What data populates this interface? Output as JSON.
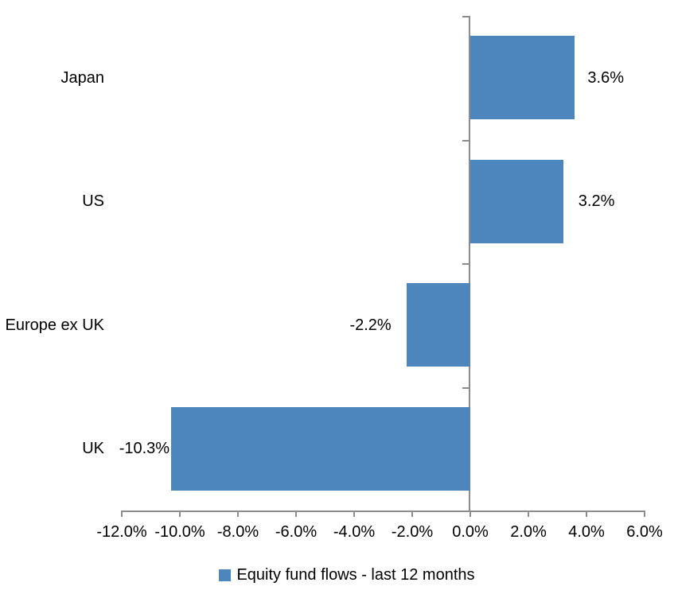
{
  "chart_data": {
    "type": "bar",
    "orientation": "horizontal",
    "title": "",
    "categories": [
      "Japan",
      "US",
      "Europe ex UK",
      "UK"
    ],
    "values": [
      3.6,
      3.2,
      -2.2,
      -10.3
    ],
    "data_labels": [
      "3.6%",
      "3.2%",
      "-2.2%",
      "-10.3%"
    ],
    "series": [
      {
        "name": "Equity fund flows - last 12 months",
        "values": [
          3.6,
          3.2,
          -2.2,
          -10.3
        ]
      }
    ],
    "xlabel": "",
    "ylabel": "",
    "xlim": [
      -12,
      6
    ],
    "x_ticks": [
      -12,
      -10,
      -8,
      -6,
      -4,
      -2,
      0,
      2,
      4,
      6
    ],
    "x_tick_labels": [
      "-12.0%",
      "-10.0%",
      "-8.0%",
      "-6.0%",
      "-4.0%",
      "-2.0%",
      "0.0%",
      "2.0%",
      "4.0%",
      "6.0%"
    ],
    "grid": false,
    "legend_position": "bottom",
    "colors": {
      "bar": "#4D86BC",
      "axis": "#8C8C8C",
      "text": "#000000",
      "background": "#FFFFFF"
    }
  },
  "legend": {
    "label": "Equity fund flows - last 12 months"
  }
}
